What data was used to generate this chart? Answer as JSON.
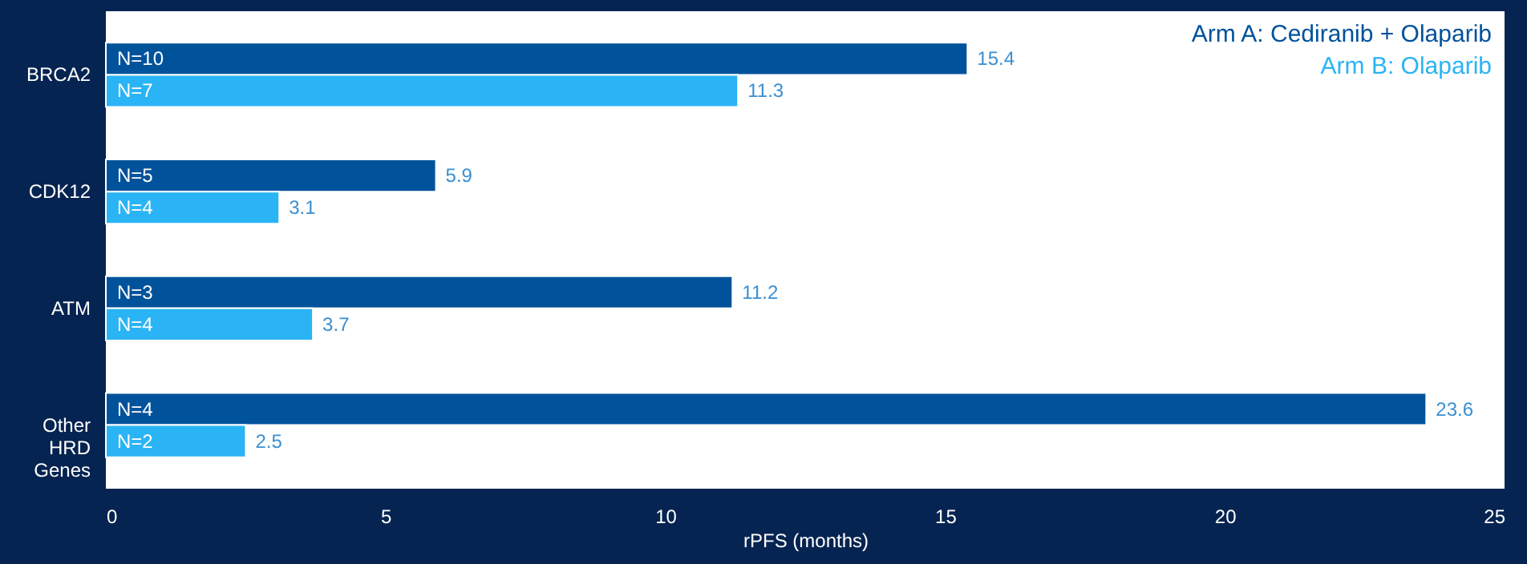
{
  "chart_data": {
    "type": "bar",
    "orientation": "horizontal",
    "xlabel": "rPFS (months)",
    "categories": [
      "BRCA2",
      "CDK12",
      "ATM",
      "Other HRD Genes"
    ],
    "series": [
      {
        "name": "Arm A: Cediranib + Olaparib",
        "color": "#00529b",
        "values": [
          15.4,
          5.9,
          11.2,
          23.6
        ]
      },
      {
        "name": "Arm B: Olaparib",
        "color": "#2ab4f5",
        "values": [
          11.3,
          3.1,
          3.7,
          2.5
        ]
      }
    ],
    "xlim": [
      0,
      25
    ],
    "xticks": [
      0,
      5,
      10,
      15,
      20,
      25
    ],
    "data_labels": true,
    "grid": false,
    "legend": "top right",
    "annotations": [
      "N=10",
      "N=7",
      "N=5",
      "N=4",
      "N=3",
      "N=4",
      "N=4",
      "N=2"
    ]
  }
}
